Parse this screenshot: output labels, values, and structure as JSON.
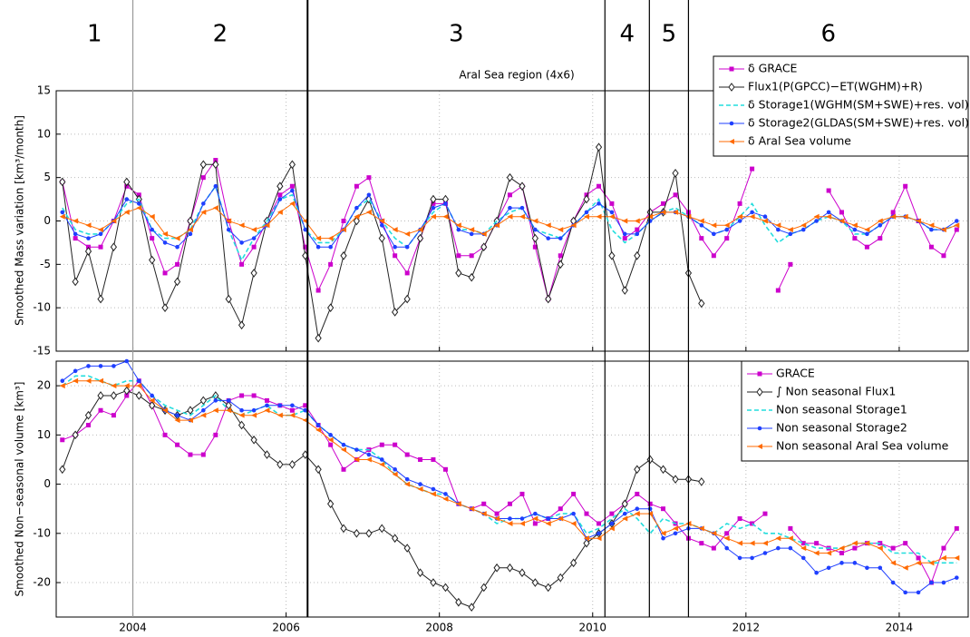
{
  "regions": {
    "labels": [
      "1",
      "2",
      "3",
      "4",
      "5",
      "6"
    ],
    "boundaries": [
      2004.0,
      2006.28,
      2010.16,
      2010.74,
      2011.25
    ]
  },
  "chart_data": [
    {
      "type": "line",
      "annotation": "Aral Sea region (4x6)",
      "y_label": "Smoothed Mass variation [km³/month]",
      "xlim": [
        2003.0,
        2014.9
      ],
      "ylim": [
        -15,
        15
      ],
      "yticks": [
        -15,
        -10,
        -5,
        0,
        5,
        10,
        15
      ],
      "grid": true,
      "legend": "upper right",
      "x": [
        2003.08,
        2003.25,
        2003.42,
        2003.58,
        2003.75,
        2003.92,
        2004.08,
        2004.25,
        2004.42,
        2004.58,
        2004.75,
        2004.92,
        2005.08,
        2005.25,
        2005.42,
        2005.58,
        2005.75,
        2005.92,
        2006.08,
        2006.25,
        2006.42,
        2006.58,
        2006.75,
        2006.92,
        2007.08,
        2007.25,
        2007.42,
        2007.58,
        2007.75,
        2007.92,
        2008.08,
        2008.25,
        2008.42,
        2008.58,
        2008.75,
        2008.92,
        2009.08,
        2009.25,
        2009.42,
        2009.58,
        2009.75,
        2009.92,
        2010.08,
        2010.25,
        2010.42,
        2010.58,
        2010.75,
        2010.92,
        2011.08,
        2011.25,
        2011.42,
        2011.58,
        2011.75,
        2011.92,
        2012.08,
        2012.25,
        2012.42,
        2012.58,
        2012.75,
        2012.92,
        2013.08,
        2013.25,
        2013.42,
        2013.58,
        2013.75,
        2013.92,
        2014.08,
        2014.25,
        2014.42,
        2014.58,
        2014.75
      ],
      "series": [
        {
          "name": "δ GRACE",
          "color": "#cc00cc",
          "marker": "square",
          "dashed": false,
          "values": [
            4.5,
            -2,
            -3,
            -3,
            0,
            4,
            3,
            -2,
            -6,
            -5,
            0,
            5,
            7,
            0,
            -5,
            -3,
            0,
            3,
            4,
            -3,
            -8,
            -5,
            0,
            4,
            5,
            0,
            -4,
            -6,
            -2,
            2,
            2,
            -4,
            -4,
            -3,
            0,
            3,
            4,
            -3,
            -9,
            -4,
            0,
            3,
            4,
            2,
            -2,
            -1,
            1,
            2,
            3,
            1,
            -2,
            -4,
            -2,
            2,
            6,
            null,
            -8,
            -5,
            null,
            null,
            3.5,
            1,
            -2,
            -3,
            -2,
            1,
            4,
            0,
            -3,
            -4,
            -1
          ]
        },
        {
          "name": "Flux1(P(GPCC)−ET(WGHM)+R)",
          "color": "#222222",
          "marker": "diamond",
          "dashed": false,
          "values": [
            4.5,
            -7,
            -3.5,
            -9,
            -3,
            4.5,
            2.5,
            -4.5,
            -10,
            -7,
            0,
            6.5,
            6.5,
            -9,
            -12,
            -6,
            0,
            4,
            6.5,
            -4,
            -13.5,
            -10,
            -4,
            0,
            2.5,
            -2,
            -10.5,
            -9,
            -2,
            2.5,
            2.5,
            -6,
            -6.5,
            -3,
            0,
            5,
            4,
            -2,
            -9,
            -5,
            0,
            2.5,
            8.5,
            -4,
            -8,
            -4,
            1,
            1,
            5.5,
            -6,
            -9.5,
            null,
            null,
            null,
            null,
            null,
            null,
            null,
            null,
            null,
            null,
            null,
            null,
            null,
            null,
            null,
            null,
            null,
            null,
            null,
            null
          ]
        },
        {
          "name": "δ Storage1(WGHM(SM+SWE)+res. vol)",
          "color": "#22dddd",
          "marker": "none",
          "dashed": true,
          "values": [
            1.5,
            -1,
            -1.5,
            -1.5,
            0,
            2,
            2.5,
            -1,
            -2,
            -2,
            -1,
            2,
            4,
            -1,
            -4.5,
            -2,
            0,
            2.5,
            3,
            -1,
            -2.5,
            -2.5,
            -1,
            1.5,
            2.5,
            0,
            -2,
            -3,
            -1,
            1,
            2,
            -1,
            -1,
            -1.5,
            0,
            1,
            1.5,
            -1,
            -1.5,
            -2,
            -0.5,
            1,
            2.5,
            -1,
            -2.5,
            -1.5,
            0,
            1,
            1.5,
            0.5,
            -0.5,
            -1.5,
            -1,
            0.5,
            2,
            -0.5,
            -2.5,
            -1.5,
            -1,
            0,
            0.5,
            0,
            -1.5,
            -1.5,
            -0.5,
            0.5,
            0.5,
            0,
            -1,
            -1,
            -0.5
          ]
        },
        {
          "name": "δ Storage2(GLDAS(SM+SWE)+res. vol)",
          "color": "#1f3fff",
          "marker": "star",
          "dashed": false,
          "values": [
            1,
            -1.5,
            -2,
            -1.5,
            0,
            2.5,
            2,
            -1,
            -2.5,
            -3,
            -1.5,
            2,
            4,
            -1,
            -2.5,
            -2,
            -0.5,
            2.5,
            3.5,
            -1,
            -3,
            -3,
            -1,
            1.5,
            3,
            -0.5,
            -3,
            -3,
            -1,
            1.5,
            2,
            -1,
            -1.5,
            -1.5,
            -0.5,
            1.5,
            1.5,
            -1,
            -2,
            -2,
            -0.5,
            1,
            2,
            1,
            -1.5,
            -1.5,
            0,
            1,
            1,
            0.5,
            -0.5,
            -1.5,
            -1,
            0,
            1,
            0.5,
            -1,
            -1.5,
            -1,
            0,
            1,
            0,
            -1,
            -1.5,
            -0.5,
            0.5,
            0.5,
            0,
            -1,
            -1,
            0
          ]
        },
        {
          "name": "δ Aral Sea volume",
          "color": "#ff6a00",
          "marker": "triangle",
          "dashed": false,
          "values": [
            0.5,
            0,
            -0.5,
            -1,
            0,
            1,
            1.5,
            0.5,
            -1.5,
            -2,
            -1,
            1,
            1.5,
            0,
            -0.5,
            -1,
            -0.5,
            1,
            2,
            0,
            -2,
            -2,
            -1,
            0.5,
            1,
            0,
            -1,
            -1.5,
            -1,
            0.5,
            0.5,
            -0.5,
            -1,
            -1.5,
            -0.5,
            0.5,
            0.5,
            0,
            -0.5,
            -1,
            -0.5,
            0.5,
            0.5,
            0.5,
            0,
            0,
            0.5,
            1,
            1,
            0.5,
            0,
            -0.5,
            -0.5,
            0.5,
            0.5,
            0,
            -0.5,
            -1,
            -0.5,
            0.5,
            0.5,
            0,
            -0.5,
            -1,
            0,
            0.5,
            0.5,
            0,
            -0.5,
            -1,
            -0.5
          ]
        }
      ]
    },
    {
      "type": "line",
      "y_label": "Smoothed Non−seasonal volume [km³]",
      "xlim": [
        2003.0,
        2014.9
      ],
      "ylim": [
        -27,
        25
      ],
      "yticks": [
        -20,
        -10,
        0,
        10,
        20
      ],
      "xticks": [
        2004,
        2006,
        2008,
        2010,
        2012,
        2014
      ],
      "grid": true,
      "legend": "upper right",
      "x": [
        2003.08,
        2003.25,
        2003.42,
        2003.58,
        2003.75,
        2003.92,
        2004.08,
        2004.25,
        2004.42,
        2004.58,
        2004.75,
        2004.92,
        2005.08,
        2005.25,
        2005.42,
        2005.58,
        2005.75,
        2005.92,
        2006.08,
        2006.25,
        2006.42,
        2006.58,
        2006.75,
        2006.92,
        2007.08,
        2007.25,
        2007.42,
        2007.58,
        2007.75,
        2007.92,
        2008.08,
        2008.25,
        2008.42,
        2008.58,
        2008.75,
        2008.92,
        2009.08,
        2009.25,
        2009.42,
        2009.58,
        2009.75,
        2009.92,
        2010.08,
        2010.25,
        2010.42,
        2010.58,
        2010.75,
        2010.92,
        2011.08,
        2011.25,
        2011.42,
        2011.58,
        2011.75,
        2011.92,
        2012.08,
        2012.25,
        2012.42,
        2012.58,
        2012.75,
        2012.92,
        2013.08,
        2013.25,
        2013.42,
        2013.58,
        2013.75,
        2013.92,
        2014.08,
        2014.25,
        2014.42,
        2014.58,
        2014.75
      ],
      "series": [
        {
          "name": "GRACE",
          "color": "#cc00cc",
          "marker": "square",
          "dashed": false,
          "values": [
            9,
            10,
            12,
            15,
            14,
            18,
            21,
            16,
            10,
            8,
            6,
            6,
            10,
            17,
            18,
            18,
            17,
            16,
            15,
            16,
            12,
            8,
            3,
            5,
            7,
            8,
            8,
            6,
            5,
            5,
            3,
            -4,
            -5,
            -4,
            -6,
            -4,
            -2,
            -8,
            -7,
            -5,
            -2,
            -6,
            -8,
            -6,
            -4,
            -2,
            -4,
            -5,
            -8,
            -11,
            -12,
            -13,
            -10,
            -7,
            -8,
            -6,
            null,
            -9,
            -12,
            -12,
            -13,
            -14,
            -13,
            -12,
            -12,
            -13,
            -12,
            -15,
            -20,
            -13,
            -9
          ]
        },
        {
          "name": "∫ Non seasonal Flux1",
          "color": "#222222",
          "marker": "diamond",
          "dashed": false,
          "values": [
            3,
            10,
            14,
            18,
            18,
            19,
            18,
            16,
            15,
            14,
            15,
            17,
            18,
            16,
            12,
            9,
            6,
            4,
            4,
            6,
            3,
            -4,
            -9,
            -10,
            -10,
            -9,
            -11,
            -13,
            -18,
            -20,
            -21,
            -24,
            -25,
            -21,
            -17,
            -17,
            -18,
            -20,
            -21,
            -19,
            -16,
            -12,
            -10,
            -8,
            -4,
            3,
            5,
            3,
            1,
            1,
            0.5,
            null,
            null,
            null,
            null,
            null,
            null,
            null,
            null,
            null,
            null,
            null,
            null,
            null,
            null,
            null,
            null,
            null,
            null,
            null,
            null
          ]
        },
        {
          "name": "Non seasonal Storage1",
          "color": "#22dddd",
          "marker": "none",
          "dashed": true,
          "values": [
            20,
            22,
            22,
            21,
            20,
            21,
            21,
            18,
            16,
            15,
            14,
            16,
            18,
            15,
            14,
            15,
            16,
            14,
            14,
            15,
            12,
            10,
            8,
            7,
            7,
            5,
            2,
            0,
            -1,
            -2,
            -2,
            -4,
            -5,
            -6,
            -8,
            -7,
            -7,
            -6,
            -7,
            -6,
            -6,
            -10,
            -9,
            -7,
            -5,
            -7,
            -10,
            -7,
            -8,
            -8,
            -9,
            -10,
            -8,
            -9,
            -8,
            -10,
            -10,
            -11,
            -12,
            -13,
            -13,
            -13,
            -12,
            -12,
            -12,
            -14,
            -14,
            -14,
            -16,
            -16,
            -16
          ]
        },
        {
          "name": "Non seasonal Storage2",
          "color": "#1f3fff",
          "marker": "star",
          "dashed": false,
          "values": [
            21,
            23,
            24,
            24,
            24,
            25,
            21,
            18,
            15,
            14,
            13,
            15,
            17,
            17,
            15,
            15,
            16,
            16,
            16,
            15,
            12,
            10,
            8,
            7,
            6,
            5,
            3,
            1,
            0,
            -1,
            -2,
            -4,
            -5,
            -6,
            -7,
            -7,
            -7,
            -6,
            -7,
            -7,
            -6,
            -11,
            -10,
            -8,
            -6,
            -5,
            -5,
            -11,
            -10,
            -9,
            -9,
            -10,
            -13,
            -15,
            -15,
            -14,
            -13,
            -13,
            -15,
            -18,
            -17,
            -16,
            -16,
            -17,
            -17,
            -20,
            -22,
            -22,
            -20,
            -20,
            -19
          ]
        },
        {
          "name": "Non seasonal Aral Sea volume",
          "color": "#ff6a00",
          "marker": "triangle",
          "dashed": false,
          "values": [
            20,
            21,
            21,
            21,
            20,
            20,
            20,
            17,
            15,
            13,
            13,
            14,
            15,
            15,
            14,
            14,
            15,
            14,
            14,
            13,
            11,
            9,
            7,
            5,
            5,
            4,
            2,
            0,
            -1,
            -2,
            -3,
            -4,
            -5,
            -6,
            -7,
            -8,
            -8,
            -7,
            -8,
            -7,
            -8,
            -11,
            -11,
            -9,
            -7,
            -6,
            -6,
            -10,
            -9,
            -8,
            -9,
            -10,
            -11,
            -12,
            -12,
            -12,
            -11,
            -11,
            -13,
            -14,
            -14,
            -13,
            -12,
            -12,
            -13,
            -16,
            -17,
            -16,
            -16,
            -15,
            -15
          ]
        }
      ]
    }
  ]
}
